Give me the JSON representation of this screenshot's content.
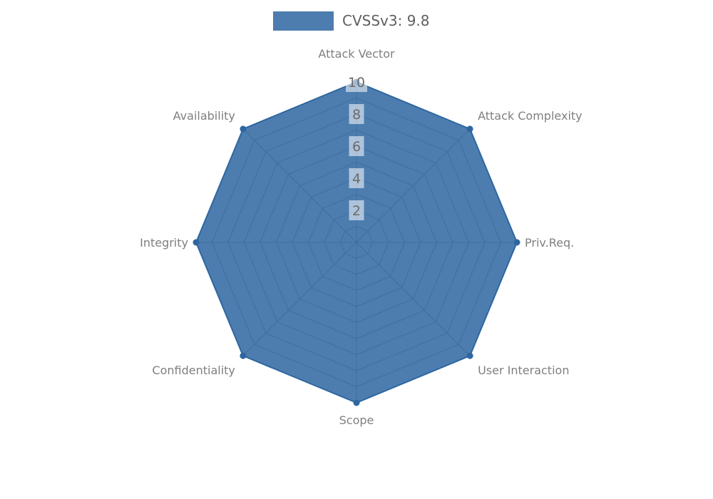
{
  "chart_data": {
    "type": "radar",
    "legend": {
      "label": "CVSSv3: 9.8",
      "swatch_color": "#2e66a1",
      "swatch_opacity": 0.85
    },
    "categories": [
      "Attack Vector",
      "Attack Complexity",
      "Priv.Req.",
      "User Interaction",
      "Scope",
      "Confidentiality",
      "Integrity",
      "Availability"
    ],
    "series": [
      {
        "name": "CVSSv3: 9.8",
        "values": [
          10,
          10,
          10,
          10,
          10,
          10,
          10,
          10
        ],
        "color": "#2e66a1",
        "fill_opacity": 0.85,
        "marker_radius": 4.5,
        "stroke_width": 2
      }
    ],
    "radial_axis": {
      "min": 0,
      "max": 10,
      "ring_step": 1,
      "tick_values": [
        2,
        4,
        6,
        8,
        10
      ],
      "grid_color": "#999999",
      "tick_text_color": "#6b6b6b",
      "tick_box_color": "rgba(255,255,255,0.55)"
    },
    "style": {
      "category_label_color": "#7f7f7f",
      "legend_text_color": "#5f5f5f",
      "background": "#ffffff"
    },
    "layout": {
      "center_x": 500,
      "center_y": 340,
      "radius": 225,
      "start_angle_deg": 90,
      "clockwise": true,
      "legend_position": "top"
    }
  }
}
